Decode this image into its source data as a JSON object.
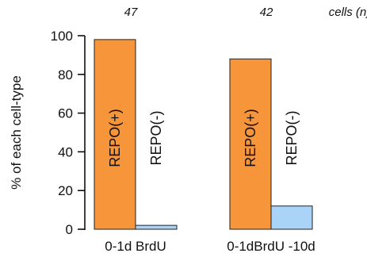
{
  "chart_data": {
    "type": "bar",
    "ylabel": "% of each cell-type",
    "ylim": [
      0,
      100
    ],
    "yticks": [
      0,
      20,
      40,
      60,
      80,
      100
    ],
    "categories": [
      "0-1d BrdU",
      "0-1dBrdU -10d"
    ],
    "n_values": [
      "47",
      "42"
    ],
    "n_header": "cells (n)",
    "series": [
      {
        "name": "REPO(+)",
        "color": "#f7953a",
        "values": [
          98,
          88
        ]
      },
      {
        "name": "REPO(-)",
        "color": "#a9d3f7",
        "values": [
          2,
          12
        ]
      }
    ],
    "grid": false
  }
}
